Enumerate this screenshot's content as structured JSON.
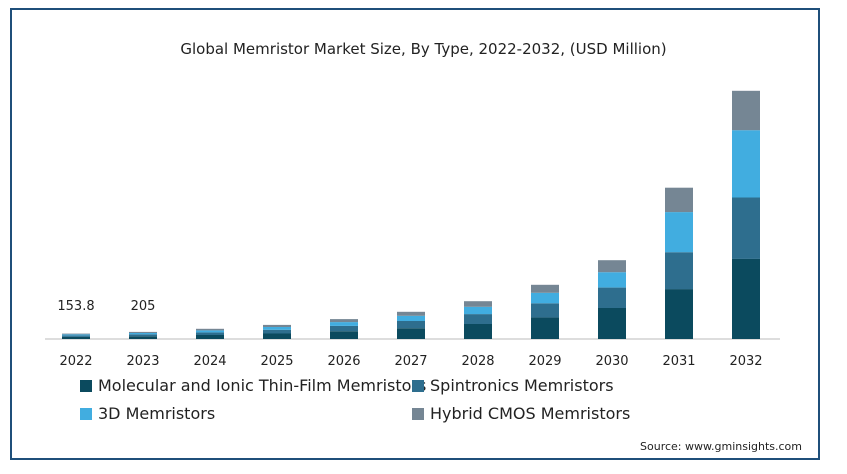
{
  "chart_data": {
    "type": "bar",
    "stacked": true,
    "title": "Global Memristor Market Size, By Type, 2022-2032, (USD Million)",
    "categories": [
      "2022",
      "2023",
      "2024",
      "2025",
      "2026",
      "2027",
      "2028",
      "2029",
      "2030",
      "2031",
      "2032"
    ],
    "series": [
      {
        "name": "Molecular and Ionic Thin-Film Memristors",
        "color": "#0b4a5e",
        "values": [
          61,
          81,
          115,
          160,
          225,
          310,
          430,
          620,
          890,
          1430,
          2300
        ]
      },
      {
        "name": "Spintronics Memristors",
        "color": "#2e6e8e",
        "values": [
          40,
          53,
          75,
          105,
          150,
          205,
          285,
          405,
          585,
          1060,
          1760
        ]
      },
      {
        "name": "3D Memristors",
        "color": "#41ade0",
        "values": [
          30,
          40,
          57,
          80,
          110,
          150,
          210,
          300,
          440,
          1150,
          1930
        ]
      },
      {
        "name": "Hybrid CMOS Memristors",
        "color": "#758694",
        "values": [
          23,
          31,
          45,
          60,
          85,
          115,
          160,
          230,
          345,
          700,
          1130
        ]
      }
    ],
    "data_labels": [
      {
        "category": "2022",
        "text": "153.8"
      },
      {
        "category": "2023",
        "text": "205"
      }
    ],
    "ylim": [
      0,
      7200
    ],
    "grid": false,
    "legend_position": "bottom"
  },
  "source": "Source: www.gminsights.com"
}
